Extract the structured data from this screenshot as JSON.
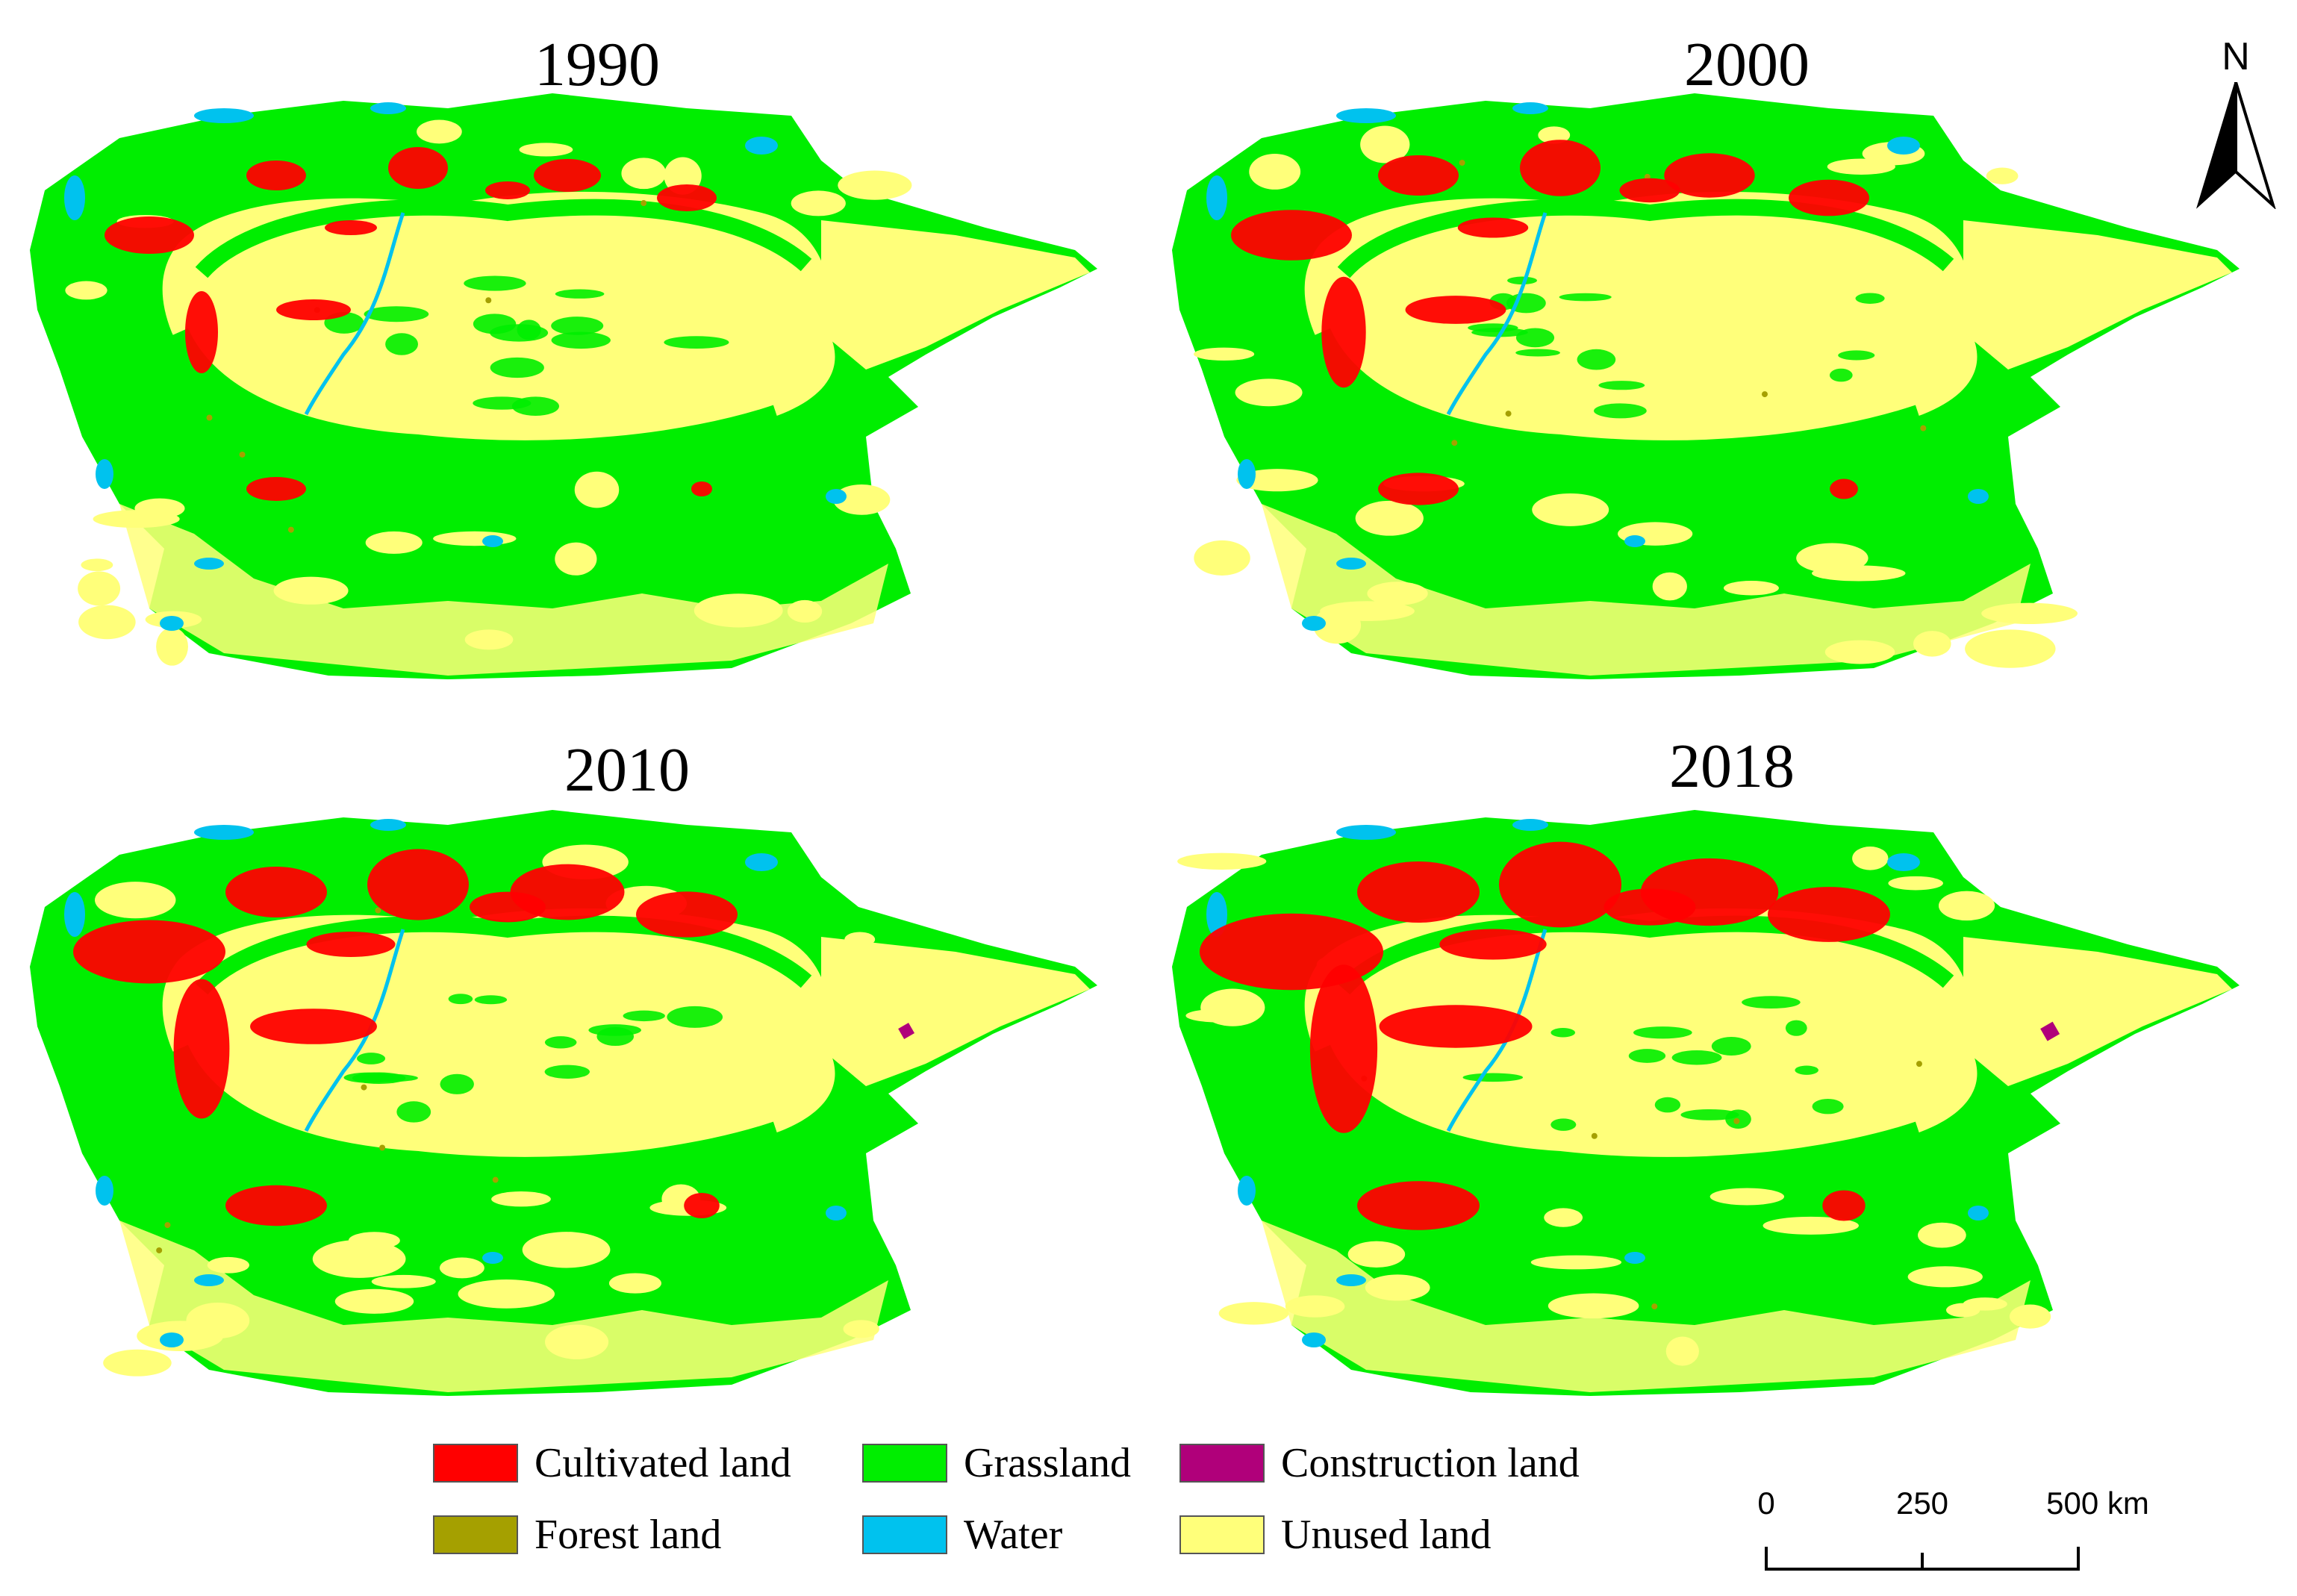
{
  "panels": [
    {
      "year": "1990",
      "stage": 0
    },
    {
      "year": "2000",
      "stage": 1
    },
    {
      "year": "2010",
      "stage": 2
    },
    {
      "year": "2018",
      "stage": 3
    }
  ],
  "north_arrow": {
    "label": "N"
  },
  "legend": {
    "items": [
      {
        "label": "Cultivated land",
        "color": "#ff0000"
      },
      {
        "label": "Grassland",
        "color": "#00ee00"
      },
      {
        "label": "Construction land",
        "color": "#b0007a"
      },
      {
        "label": "Forest land",
        "color": "#a5a000"
      },
      {
        "label": "Water",
        "color": "#00c2ee"
      },
      {
        "label": "Unused land",
        "color": "#ffff7a"
      }
    ]
  },
  "scale_bar": {
    "ticks": [
      "0",
      "250",
      "500 km"
    ]
  }
}
